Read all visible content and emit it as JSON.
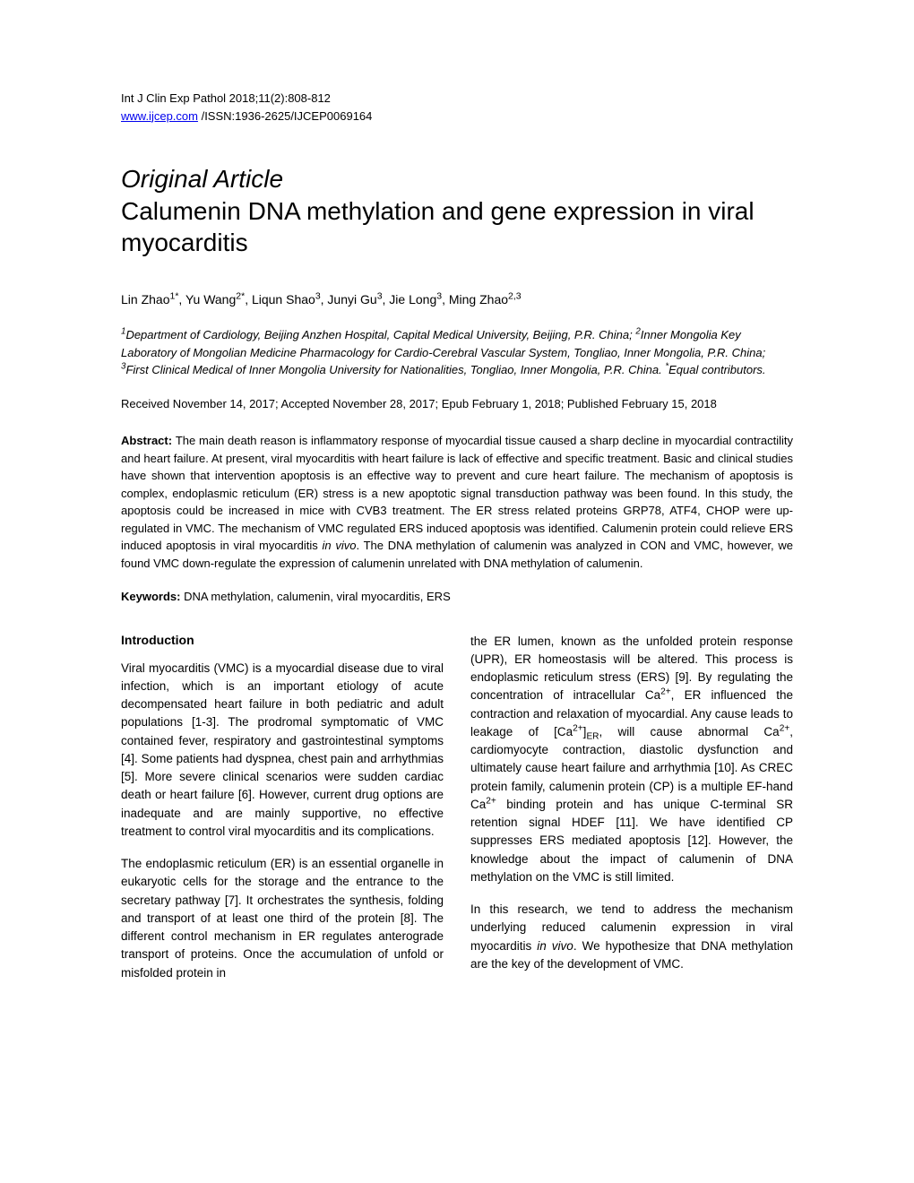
{
  "header": {
    "journal_line": "Int J Clin Exp Pathol 2018;11(2):808-812",
    "url_text": "www.ijcep.com",
    "issn_line": " /ISSN:1936-2625/IJCEP0069164"
  },
  "article": {
    "type": "Original Article",
    "title": "Calumenin DNA methylation and gene expression in viral myocarditis"
  },
  "authors": {
    "a1_name": "Lin Zhao",
    "a1_sup": "1*",
    "a2_name": ", Yu Wang",
    "a2_sup": "2*",
    "a3_name": ", Liqun Shao",
    "a3_sup": "3",
    "a4_name": ", Junyi Gu",
    "a4_sup": "3",
    "a5_name": ", Jie Long",
    "a5_sup": "3",
    "a6_name": ", Ming Zhao",
    "a6_sup": "2,3"
  },
  "affiliations": {
    "sup1": "1",
    "text1": "Department of Cardiology, Beijing Anzhen Hospital, Capital Medical University, Beijing, P.R. China; ",
    "sup2": "2",
    "text2": "Inner Mongolia Key Laboratory of Mongolian Medicine Pharmacology for Cardio-Cerebral Vascular System, Tongliao, Inner Mongolia, P.R. China; ",
    "sup3": "3",
    "text3": "First Clinical Medical of Inner Mongolia University for Nationalities, Tongliao, Inner Mongolia, P.R. China. ",
    "sup_star": "*",
    "text_star": "Equal contributors."
  },
  "dates": "Received November 14, 2017; Accepted November 28, 2017; Epub February 1, 2018; Published February 15, 2018",
  "abstract": {
    "label": "Abstract: ",
    "text_before_italic": "The main death reason is inflammatory response of myocardial tissue caused a sharp decline in myocardial contractility and heart failure. At present, viral myocarditis with heart failure is lack of effective and specific treatment. Basic and clinical studies have shown that intervention apoptosis is an effective way to prevent and cure heart failure. The mechanism of apoptosis is complex, endoplasmic reticulum (ER) stress is a new apoptotic signal transduction pathway was been found. In this study, the apoptosis could be increased in mice with CVB3 treatment. The ER stress related proteins GRP78, ATF4, CHOP were up-regulated in VMC. The mechanism of VMC regulated ERS induced apoptosis was identified. Calumenin protein could relieve ERS induced apoptosis in viral myocarditis ",
    "italic_text": "in vivo",
    "text_after_italic": ". The DNA methylation of calumenin was analyzed in CON and VMC, however, we found VMC down-regulate the expression of calumenin unrelated with DNA methylation of calumenin."
  },
  "keywords": {
    "label": "Keywords: ",
    "text": "DNA methylation, calumenin, viral myocarditis, ERS"
  },
  "intro": {
    "heading": "Introduction",
    "p1": "Viral myocarditis (VMC) is a myocardial disease due to viral infection, which is an important etiology of acute decompensated heart failure in both pediatric and adult populations [1-3]. The prodromal symptomatic of VMC contained fever, respiratory and gastrointestinal symptoms [4]. Some patients had dyspnea, chest pain and arrhythmias [5]. More severe clinical scenarios were sudden cardiac death or heart failure [6]. However, current drug options are inadequate and are mainly supportive, no effective treatment to control viral myocarditis and its complications.",
    "p2": "The endoplasmic reticulum (ER) is an essential organelle in eukaryotic cells for the storage and the entrance to the secretary pathway [7]. It orchestrates the synthesis, folding and transport of at least one third of the protein [8]. The different control mechanism in ER regulates anterograde transport of proteins. Once the accumulation of unfold or misfolded protein in",
    "p3_before_sup1": "the ER lumen, known as the unfolded protein response (UPR), ER homeostasis will be altered. This process is endoplasmic reticulum stress (ERS) [9]. By regulating the concentration of intracellular Ca",
    "p3_sup1": "2+",
    "p3_mid1": ", ER influenced the contraction and relaxation of myocardial. Any cause leads to leakage of [Ca",
    "p3_sup2": "2+",
    "p3_mid2": "]",
    "p3_sub1": "ER",
    "p3_mid3": ", will cause abnormal Ca",
    "p3_sup3": "2+",
    "p3_mid4": ", cardiomyocyte contraction, diastolic dysfunction and ultimately cause heart failure and arrhythmia [10]. As CREC protein family, calumenin protein (CP) is a multiple EF-hand Ca",
    "p3_sup4": "2+",
    "p3_end": " binding protein and has unique C-terminal SR retention signal HDEF [11]. We have identified CP suppresses ERS mediated apoptosis [12]. However, the knowledge about the impact of calumenin of DNA methylation on the VMC is still limited.",
    "p4_before": "In this research, we tend to address the mechanism underlying reduced calumenin expression in viral myocarditis ",
    "p4_italic": "in vivo",
    "p4_after": ". We hypothesize that DNA methylation are the key of the development of VMC."
  }
}
